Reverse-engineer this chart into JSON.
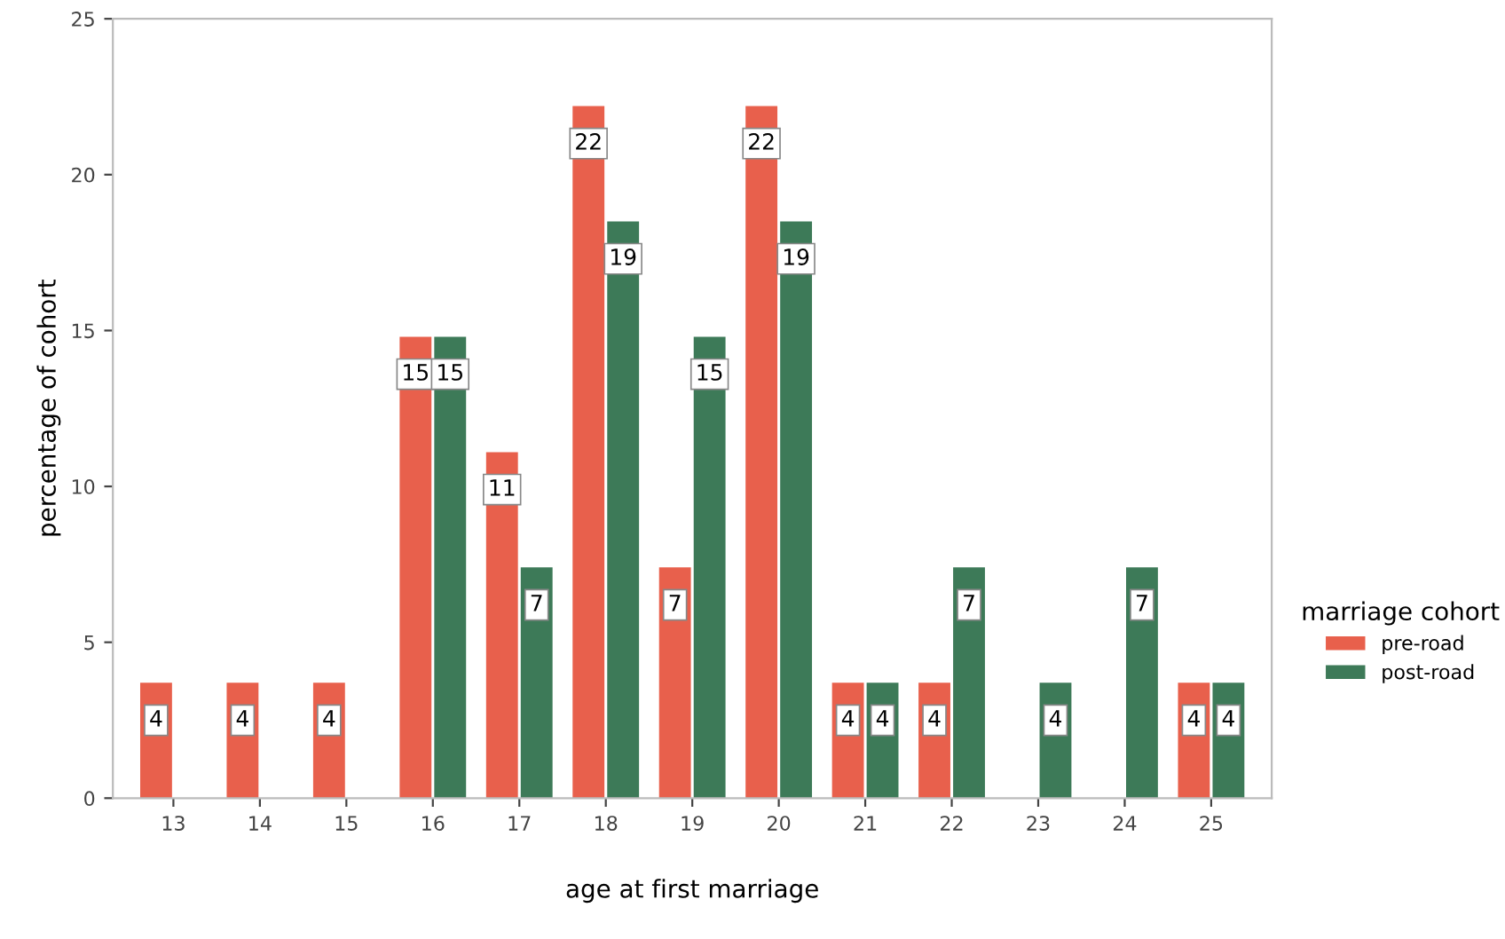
{
  "chart_data": {
    "type": "bar",
    "xlabel": "age at first marriage",
    "ylabel": "percentage of cohort",
    "legend_title": "marriage cohort",
    "categories": [
      "13",
      "14",
      "15",
      "16",
      "17",
      "18",
      "19",
      "20",
      "21",
      "22",
      "23",
      "24",
      "25"
    ],
    "series": [
      {
        "name": "pre-road",
        "color": "#e8604c",
        "values": [
          3.7,
          3.7,
          3.7,
          14.8,
          11.1,
          22.2,
          7.4,
          22.2,
          3.7,
          3.7,
          null,
          null,
          3.7
        ],
        "value_labels": [
          "4",
          "4",
          "4",
          "15",
          "11",
          "22",
          "7",
          "22",
          "4",
          "4",
          null,
          null,
          "4"
        ]
      },
      {
        "name": "post-road",
        "color": "#3d7a58",
        "values": [
          null,
          null,
          null,
          14.8,
          7.4,
          18.5,
          14.8,
          18.5,
          3.7,
          7.4,
          3.7,
          7.4,
          3.7
        ],
        "value_labels": [
          null,
          null,
          null,
          "15",
          "7",
          "19",
          "15",
          "19",
          "4",
          "7",
          "4",
          "7",
          "4"
        ]
      }
    ],
    "ylim": [
      0,
      25
    ],
    "yticks": [
      0,
      5,
      10,
      15,
      20,
      25
    ],
    "grid": false,
    "legend": "right"
  }
}
